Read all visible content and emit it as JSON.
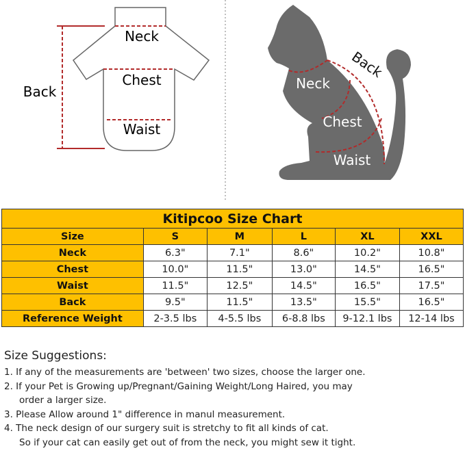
{
  "diagram": {
    "shirt_labels": {
      "neck": "Neck",
      "chest": "Chest",
      "waist": "Waist",
      "back": "Back"
    },
    "cat_labels": {
      "neck": "Neck",
      "chest": "Chest",
      "waist": "Waist",
      "back": "Back"
    },
    "colors": {
      "dash": "#b22a2a",
      "cat": "#6b6b6b",
      "outline": "#666666"
    }
  },
  "table": {
    "title": "Kitipcoo Size Chart",
    "header_color": "#fec000",
    "columns": [
      "Size",
      "S",
      "M",
      "L",
      "XL",
      "XXL"
    ],
    "rows": [
      {
        "label": "Neck",
        "values": [
          "6.3\"",
          "7.1\"",
          "8.6\"",
          "10.2\"",
          "10.8\""
        ]
      },
      {
        "label": "Chest",
        "values": [
          "10.0\"",
          "11.5\"",
          "13.0\"",
          "14.5\"",
          "16.5\""
        ]
      },
      {
        "label": "Waist",
        "values": [
          "11.5\"",
          "12.5\"",
          "14.5\"",
          "16.5\"",
          "17.5\""
        ]
      },
      {
        "label": "Back",
        "values": [
          "9.5\"",
          "11.5\"",
          "13.5\"",
          "15.5\"",
          "16.5\""
        ]
      },
      {
        "label": "Reference Weight",
        "values": [
          "2-3.5 lbs",
          "4-5.5 lbs",
          "6-8.8 lbs",
          "9-12.1 lbs",
          "12-14 lbs"
        ]
      }
    ]
  },
  "suggestions": {
    "heading": "Size Suggestions:",
    "items": [
      {
        "line1": "1. If any of the measurements are 'between' two sizes, choose the larger one.",
        "line2": ""
      },
      {
        "line1": "2. If your Pet is Growing up/Pregnant/Gaining Weight/Long Haired, you may",
        "line2": "order a larger size."
      },
      {
        "line1": "3. Please Allow around 1\" difference in manul measurement.",
        "line2": ""
      },
      {
        "line1": "4. The neck design of our surgery suit is stretchy to fit all kinds of cat.",
        "line2": "So if your cat can easily get out of from the neck, you might sew it tight."
      }
    ]
  }
}
